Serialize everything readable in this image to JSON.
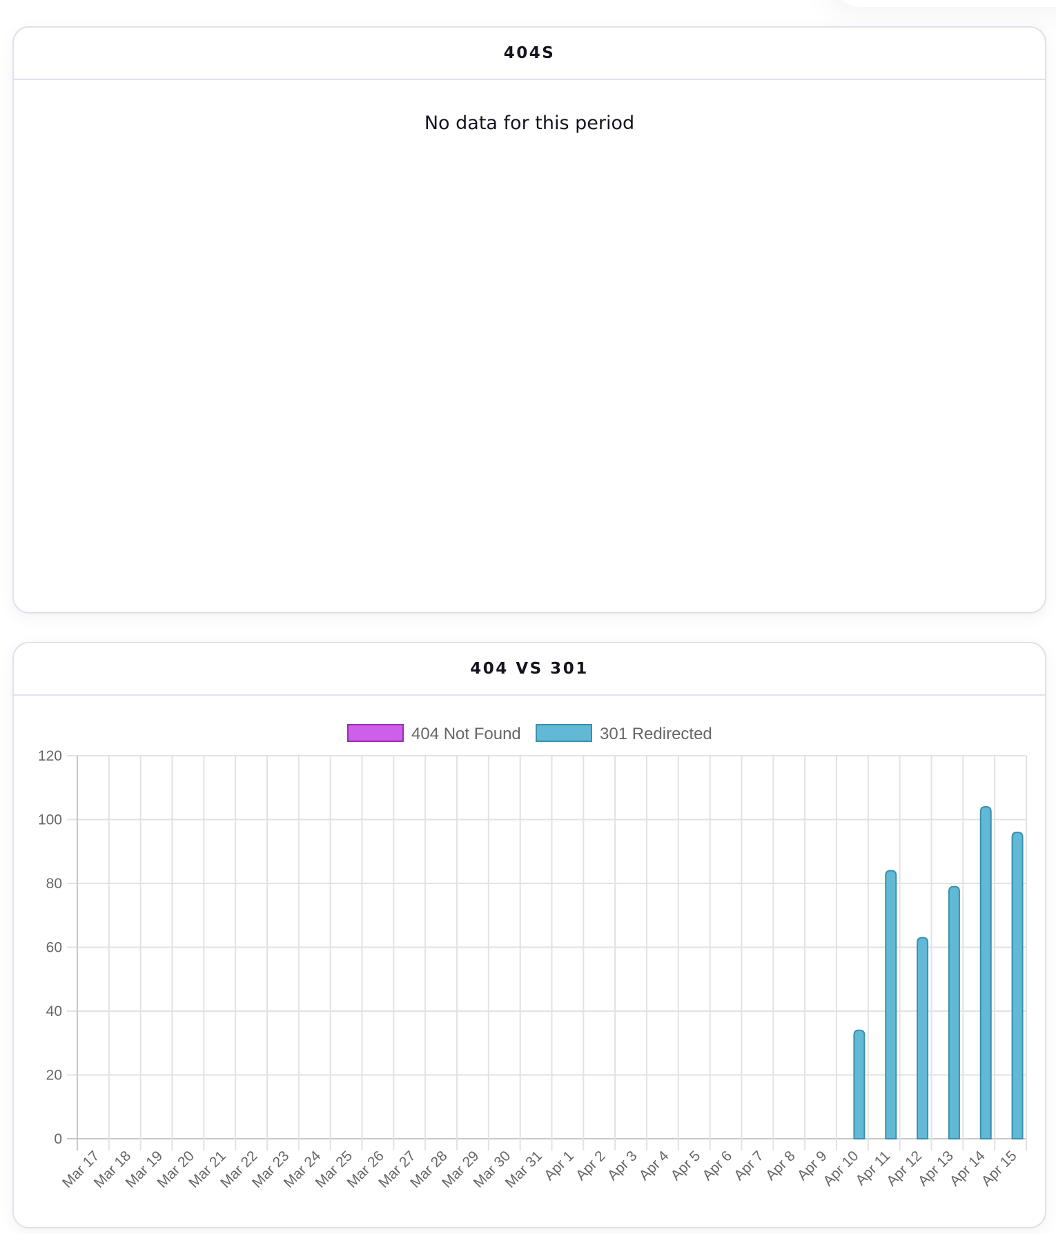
{
  "cards": [
    {
      "title": "404S",
      "empty_message": "No data for this period"
    },
    {
      "title": "404 VS 301"
    }
  ],
  "colors": {
    "card_border": "#e0e0ee",
    "not_found_fill": "#cd5fe8",
    "not_found_border": "#9b2eb3",
    "redirected_fill": "#62b9d5",
    "redirected_border": "#3a8fad",
    "grid": "#e2e2e2",
    "axis": "#c8c8c8",
    "tick_text": "#666666"
  },
  "chart_data": {
    "type": "bar",
    "title": "404 VS 301",
    "xlabel": "",
    "ylabel": "",
    "ylim": [
      0,
      120
    ],
    "yticks": [
      0,
      20,
      40,
      60,
      80,
      100,
      120
    ],
    "grid": true,
    "legend_position": "top",
    "categories": [
      "Mar 17",
      "Mar 18",
      "Mar 19",
      "Mar 20",
      "Mar 21",
      "Mar 22",
      "Mar 23",
      "Mar 24",
      "Mar 25",
      "Mar 26",
      "Mar 27",
      "Mar 28",
      "Mar 29",
      "Mar 30",
      "Mar 31",
      "Apr 1",
      "Apr 2",
      "Apr 3",
      "Apr 4",
      "Apr 5",
      "Apr 6",
      "Apr 7",
      "Apr 8",
      "Apr 9",
      "Apr 10",
      "Apr 11",
      "Apr 12",
      "Apr 13",
      "Apr 14",
      "Apr 15"
    ],
    "series": [
      {
        "name": "404 Not Found",
        "color": "#cd5fe8",
        "border": "#9b2eb3",
        "values": [
          0,
          0,
          0,
          0,
          0,
          0,
          0,
          0,
          0,
          0,
          0,
          0,
          0,
          0,
          0,
          0,
          0,
          0,
          0,
          0,
          0,
          0,
          0,
          0,
          0,
          0,
          0,
          0,
          0,
          0
        ]
      },
      {
        "name": "301 Redirected",
        "color": "#62b9d5",
        "border": "#3a8fad",
        "values": [
          0,
          0,
          0,
          0,
          0,
          0,
          0,
          0,
          0,
          0,
          0,
          0,
          0,
          0,
          0,
          0,
          0,
          0,
          0,
          0,
          0,
          0,
          0,
          0,
          34,
          84,
          63,
          79,
          104,
          96
        ]
      }
    ]
  }
}
